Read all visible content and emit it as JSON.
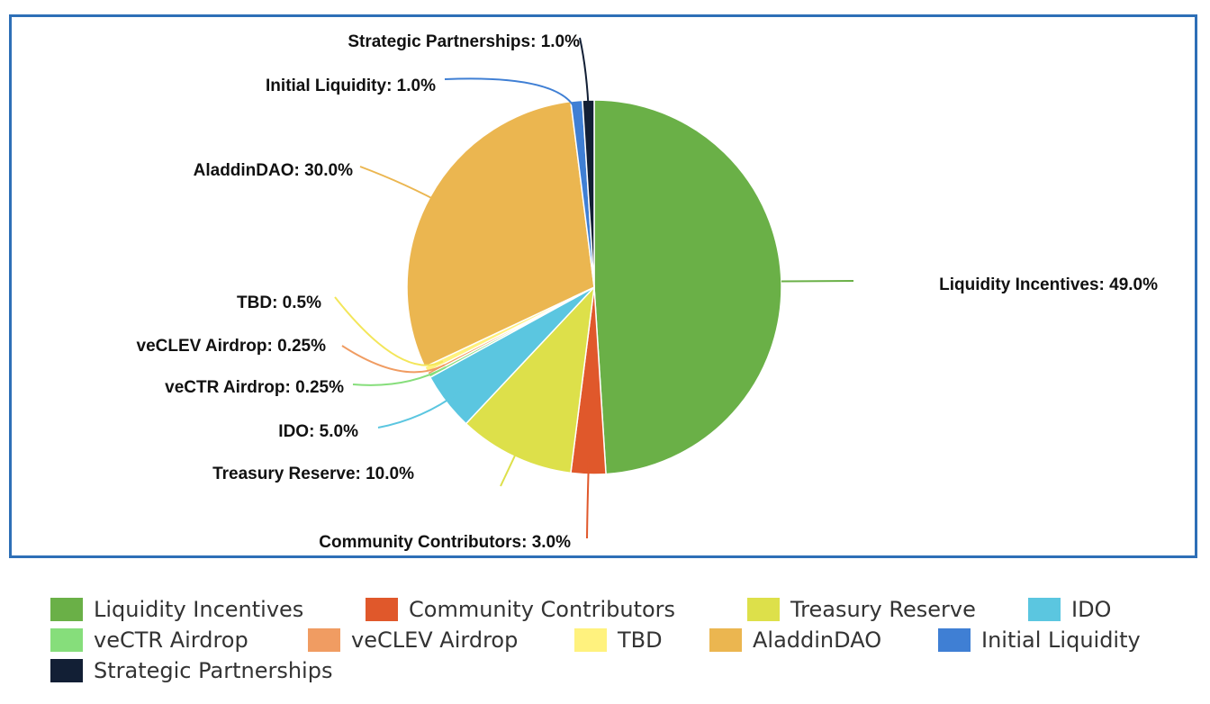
{
  "chart_data": {
    "type": "pie",
    "title": "",
    "slices": [
      {
        "name": "Liquidity Incentives",
        "value": 49.0,
        "label": "Liquidity Incentives: 49.0%",
        "color": "#6ab047"
      },
      {
        "name": "Community Contributors",
        "value": 3.0,
        "label": "Community Contributors: 3.0%",
        "color": "#e0582b"
      },
      {
        "name": "Treasury Reserve",
        "value": 10.0,
        "label": "Treasury Reserve: 10.0%",
        "color": "#dde04a"
      },
      {
        "name": "IDO",
        "value": 5.0,
        "label": "IDO: 5.0%",
        "color": "#5bc6e0"
      },
      {
        "name": "veCTR Airdrop",
        "value": 0.25,
        "label": "veCTR Airdrop: 0.25%",
        "color": "#86de7b"
      },
      {
        "name": "veCLEV Airdrop",
        "value": 0.25,
        "label": "veCLEV Airdrop: 0.25%",
        "color": "#f09c62"
      },
      {
        "name": "TBD",
        "value": 0.5,
        "label": "TBD: 0.5%",
        "color": "#fff27e"
      },
      {
        "name": "AladdinDAO",
        "value": 30.0,
        "label": "AladdinDAO: 30.0%",
        "color": "#ebb650"
      },
      {
        "name": "Initial Liquidity",
        "value": 1.0,
        "label": "Initial Liquidity: 1.0%",
        "color": "#3f7fd4"
      },
      {
        "name": "Strategic Partnerships",
        "value": 1.0,
        "label": "Strategic Partnerships: 1.0%",
        "color": "#121f35"
      }
    ],
    "legend": {
      "placement": "bottom",
      "rows": [
        [
          "Liquidity Incentives",
          "Community Contributors",
          "Treasury Reserve",
          "IDO"
        ],
        [
          "veCTR Airdrop",
          "veCLEV Airdrop",
          "TBD",
          "AladdinDAO",
          "Initial Liquidity"
        ],
        [
          "Strategic Partnerships"
        ]
      ]
    }
  }
}
